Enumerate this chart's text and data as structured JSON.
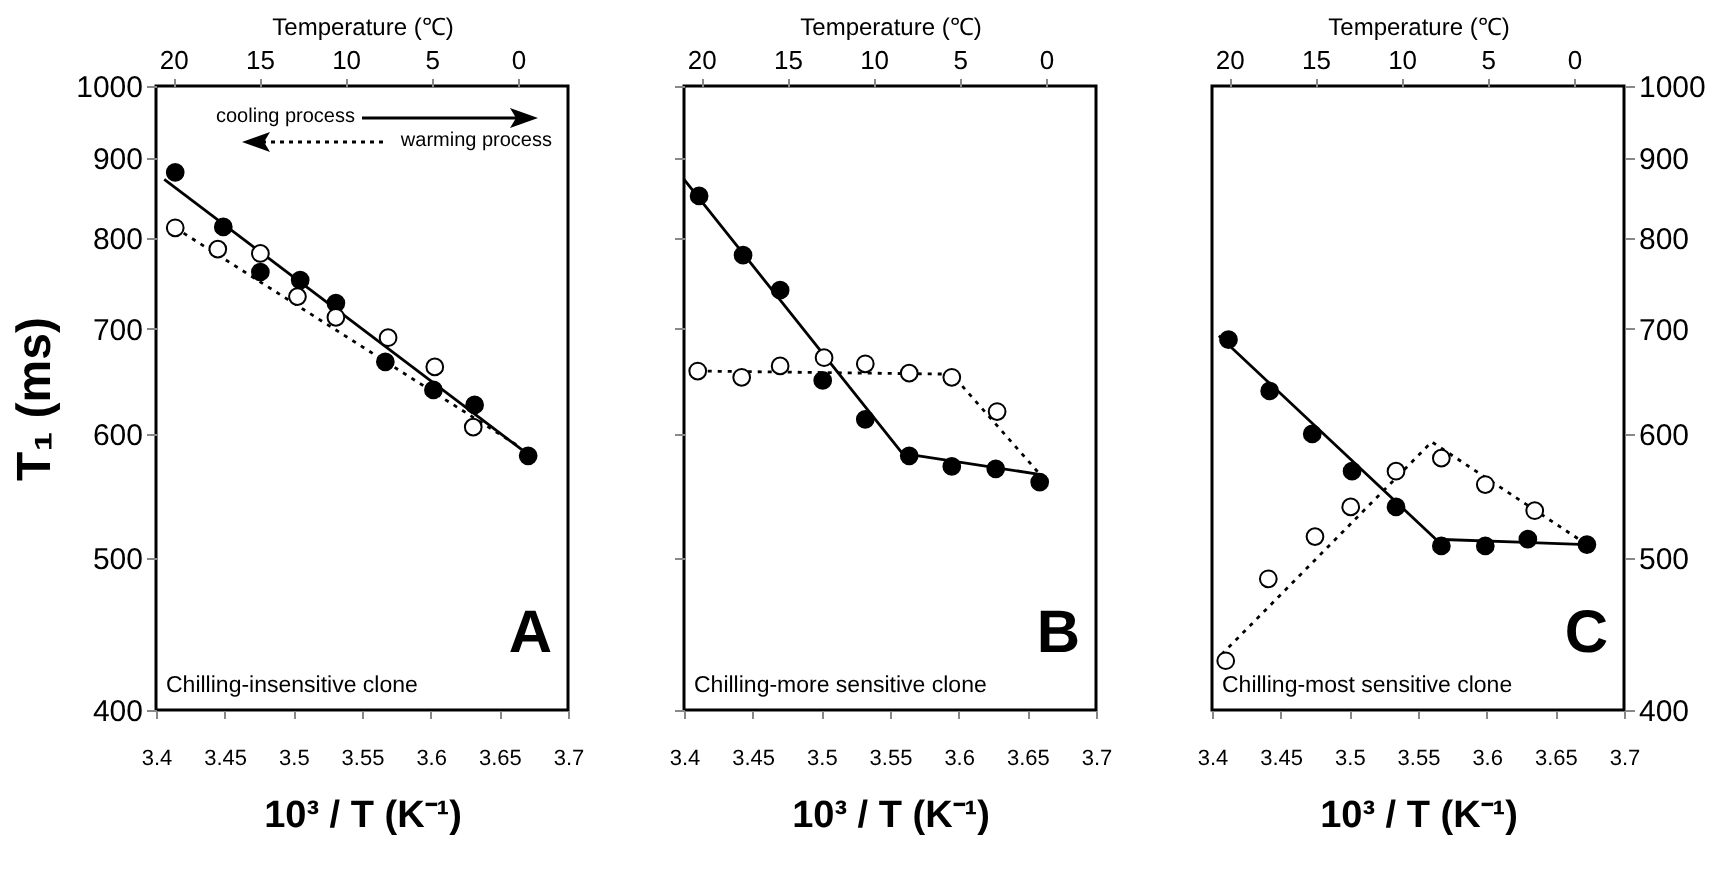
{
  "chart_data": [
    {
      "type": "scatter",
      "xlabel": "10³ / T (K⁻¹)",
      "ylabel": "T₁ (ms)",
      "x2label": "Temperature (℃)",
      "log": "y",
      "xlim": [
        3.4,
        3.7
      ],
      "xticks": [
        3.4,
        3.45,
        3.5,
        3.55,
        3.6,
        3.65,
        3.7
      ],
      "x2lim": [
        21,
        -2.9
      ],
      "x2ticks": [
        20,
        15,
        10,
        5,
        0
      ],
      "ylim": [
        400,
        1000
      ],
      "yticks": [
        400,
        500,
        600,
        700,
        800,
        900,
        1000
      ],
      "annotations": [
        "cooling process",
        "warming process",
        "A",
        "Chilling-insensitive clone"
      ],
      "series": [
        {
          "type": "scatter",
          "marker": "circle",
          "color": "#000000",
          "x": [
            3.414,
            3.449,
            3.476,
            3.505,
            3.531,
            3.567,
            3.602,
            3.632,
            3.671
          ],
          "values": [
            881,
            813,
            761,
            752,
            727,
            667,
            640,
            626,
            581
          ]
        },
        {
          "type": "scatter",
          "marker": "circle",
          "color": "#ffffff",
          "x": [
            3.414,
            3.445,
            3.476,
            3.503,
            3.531,
            3.569,
            3.603,
            3.631
          ],
          "values": [
            812,
            787,
            782,
            734,
            712,
            691,
            662,
            606
          ]
        },
        {
          "type": "line",
          "marker": "none",
          "line_style": "solid",
          "color": "#000000",
          "x": [
            3.406,
            3.67
          ],
          "values": [
            872,
            583
          ]
        },
        {
          "type": "line",
          "marker": "none",
          "line_style": "dotted",
          "color": "#000000",
          "x": [
            3.414,
            3.663
          ],
          "values": [
            812,
            590
          ]
        }
      ]
    },
    {
      "type": "scatter",
      "xlabel": "10³ / T (K⁻¹)",
      "x2label": "Temperature (℃)",
      "log": "y",
      "tick_labels": "x",
      "xlim": [
        3.4,
        3.7
      ],
      "xticks": [
        3.4,
        3.45,
        3.5,
        3.55,
        3.6,
        3.65,
        3.7
      ],
      "x2lim": [
        21,
        -2.9
      ],
      "x2ticks": [
        20,
        15,
        10,
        5,
        0
      ],
      "ylim": [
        400,
        1000
      ],
      "yticks": [
        400,
        500,
        600,
        700,
        800,
        900,
        1000
      ],
      "annotations": [
        "B",
        "Chilling-more sensitive clone"
      ],
      "series": [
        {
          "type": "scatter",
          "marker": "circle",
          "color": "#000000",
          "x": [
            3.411,
            3.443,
            3.47,
            3.501,
            3.532,
            3.564,
            3.595,
            3.627,
            3.659
          ],
          "values": [
            851,
            780,
            741,
            649,
            613,
            581,
            572,
            570,
            559
          ]
        },
        {
          "type": "scatter",
          "marker": "circle",
          "color": "#ffffff",
          "x": [
            3.41,
            3.442,
            3.47,
            3.502,
            3.532,
            3.564,
            3.595,
            3.628
          ],
          "values": [
            658,
            652,
            663,
            671,
            665,
            656,
            652,
            620
          ]
        },
        {
          "type": "line",
          "marker": "none",
          "line_style": "solid",
          "color": "#000000",
          "x": [
            3.4,
            3.559,
            3.661
          ],
          "values": [
            872,
            583,
            565
          ]
        },
        {
          "type": "line",
          "marker": "none",
          "line_style": "dotted",
          "color": "#000000",
          "x": [
            3.41,
            3.595,
            3.661
          ],
          "values": [
            658,
            655,
            563
          ]
        }
      ]
    },
    {
      "type": "scatter",
      "xlabel": "10³ / T (K⁻¹)",
      "x2label": "Temperature (℃)",
      "log": "y2",
      "xlim": [
        3.4,
        3.7
      ],
      "xticks": [
        3.4,
        3.45,
        3.5,
        3.55,
        3.6,
        3.65,
        3.7
      ],
      "x2lim": [
        21,
        -2.9
      ],
      "x2ticks": [
        20,
        15,
        10,
        5,
        0
      ],
      "y2lim": [
        400,
        1000
      ],
      "y2ticks": [
        400,
        500,
        600,
        700,
        800,
        900,
        1000
      ],
      "annotations": [
        "C",
        "Chilling-most sensitive clone"
      ],
      "series": [
        {
          "type": "scatter",
          "axis": "y2",
          "marker": "circle",
          "color": "#000000",
          "x": [
            3.412,
            3.442,
            3.473,
            3.502,
            3.534,
            3.567,
            3.599,
            3.63,
            3.673
          ],
          "values": [
            689,
            639,
            600,
            568,
            539,
            509,
            509,
            514,
            510
          ]
        },
        {
          "type": "scatter",
          "axis": "y2",
          "marker": "circle",
          "color": "#ffffff",
          "x": [
            3.41,
            3.441,
            3.475,
            3.501,
            3.534,
            3.567,
            3.599,
            3.635
          ],
          "values": [
            430,
            485,
            516,
            539,
            568,
            579,
            557,
            536
          ]
        },
        {
          "type": "line",
          "axis": "y2",
          "marker": "none",
          "line_style": "solid",
          "color": "#000000",
          "x": [
            3.405,
            3.563,
            3.673
          ],
          "values": [
            693,
            514,
            510
          ]
        },
        {
          "type": "line",
          "axis": "y2",
          "marker": "none",
          "line_style": "dotted",
          "color": "#000000",
          "x": [
            3.407,
            3.56,
            3.673
          ],
          "values": [
            434,
            593,
            510
          ]
        }
      ]
    }
  ]
}
